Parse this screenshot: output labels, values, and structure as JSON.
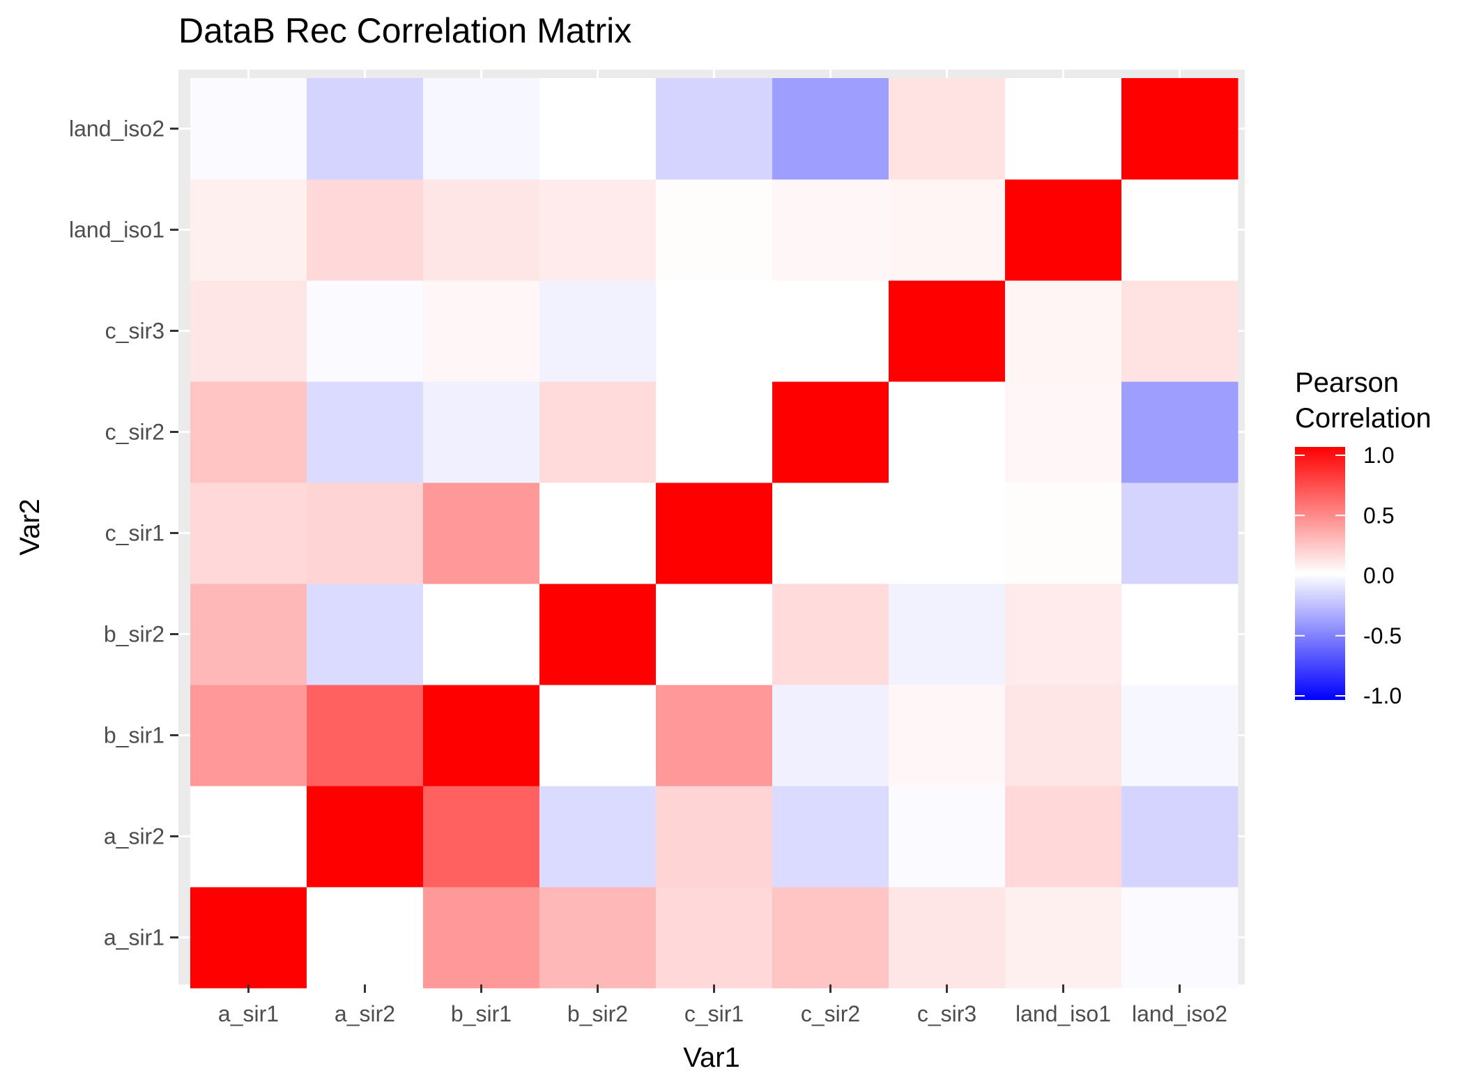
{
  "chart_data": {
    "type": "heatmap",
    "title": "DataB Rec Correlation Matrix",
    "xlabel": "Var1",
    "ylabel": "Var2",
    "x_categories": [
      "a_sir1",
      "a_sir2",
      "b_sir1",
      "b_sir2",
      "c_sir1",
      "c_sir2",
      "c_sir3",
      "land_iso1",
      "land_iso2"
    ],
    "y_categories": [
      "a_sir1",
      "a_sir2",
      "b_sir1",
      "b_sir2",
      "c_sir1",
      "c_sir2",
      "c_sir3",
      "land_iso1",
      "land_iso2"
    ],
    "matrix": [
      [
        1.0,
        0.0,
        0.4,
        0.28,
        0.15,
        0.23,
        0.1,
        0.06,
        -0.02
      ],
      [
        0.0,
        1.0,
        0.62,
        -0.14,
        0.17,
        -0.14,
        -0.02,
        0.15,
        -0.17
      ],
      [
        0.4,
        0.62,
        1.0,
        0.0,
        0.4,
        -0.06,
        0.03,
        0.1,
        -0.03
      ],
      [
        0.28,
        -0.14,
        0.0,
        1.0,
        0.0,
        0.14,
        -0.05,
        0.08,
        0.0
      ],
      [
        0.15,
        0.17,
        0.4,
        0.0,
        1.0,
        0.0,
        0.0,
        0.01,
        -0.17
      ],
      [
        0.23,
        -0.14,
        -0.06,
        0.14,
        0.0,
        1.0,
        0.0,
        0.03,
        -0.38
      ],
      [
        0.1,
        -0.02,
        0.03,
        -0.05,
        0.0,
        0.0,
        1.0,
        0.04,
        0.11
      ],
      [
        0.06,
        0.15,
        0.1,
        0.08,
        0.01,
        0.03,
        0.04,
        1.0,
        0.0
      ],
      [
        -0.02,
        -0.17,
        -0.03,
        0.0,
        -0.17,
        -0.38,
        0.11,
        0.0,
        1.0
      ]
    ],
    "legend": {
      "title_lines": [
        "Pearson",
        "Correlation"
      ],
      "ticks": [
        1.0,
        0.5,
        0.0,
        -0.5,
        -1.0
      ],
      "tick_labels": [
        "1.0",
        "0.5",
        "0.0",
        "-0.5",
        "-1.0"
      ],
      "limits": [
        -1.0,
        1.0
      ],
      "low_color": "#0000ff",
      "mid_color": "#ffffff",
      "high_color": "#ff0000",
      "placement": "right"
    },
    "panel_background": "#ebebeb",
    "grid_color": "#ffffff"
  }
}
